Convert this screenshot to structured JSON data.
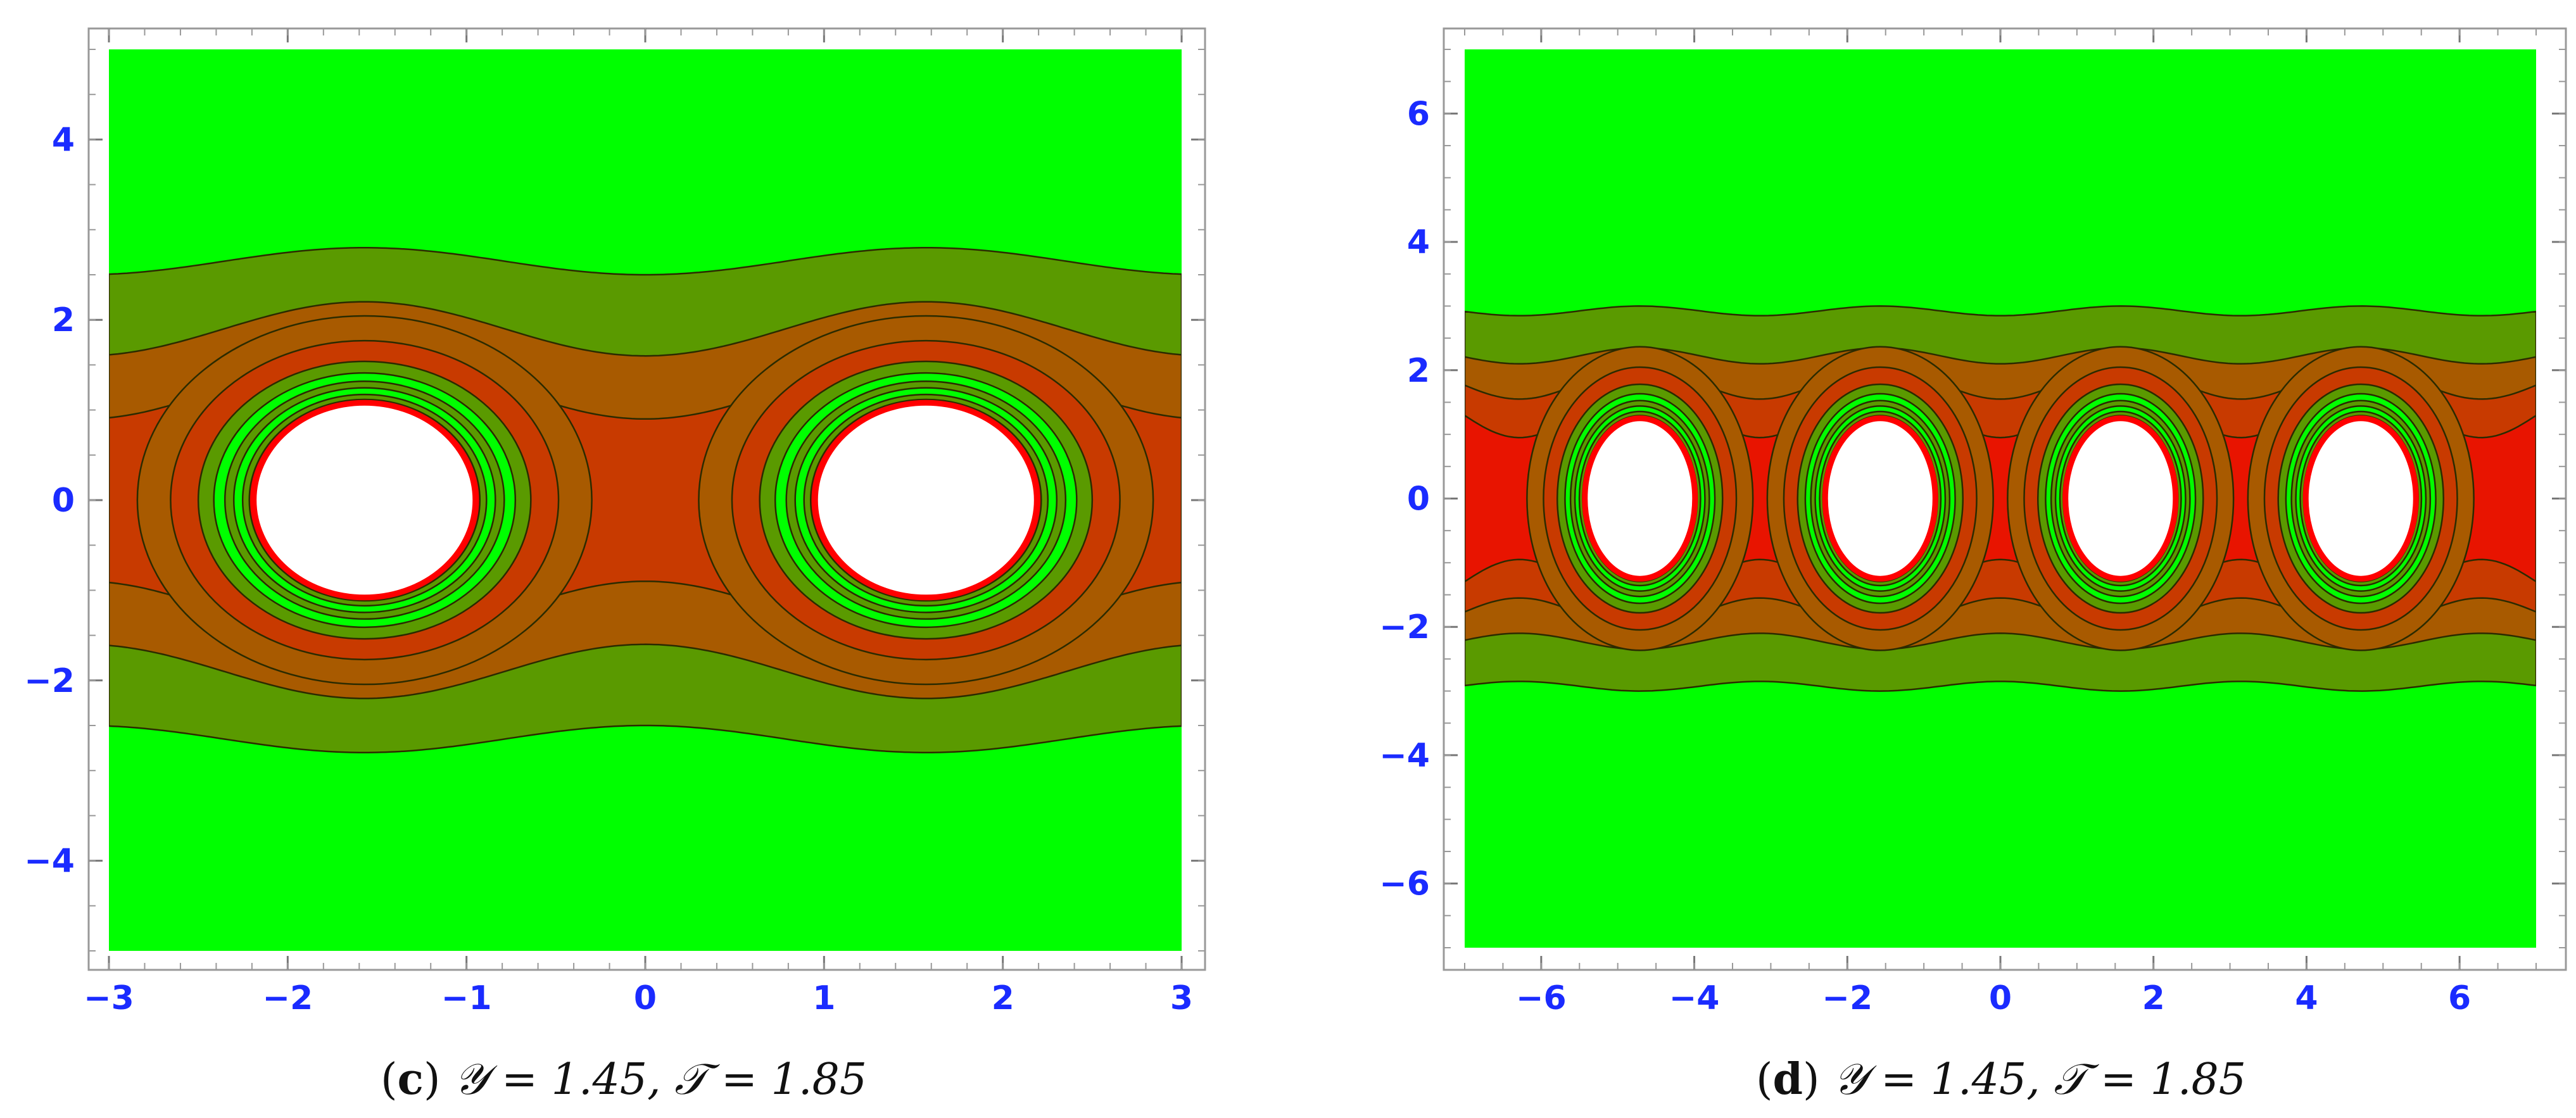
{
  "colors": {
    "outer": "#00ff00",
    "band1": "#5a9a00",
    "band2": "#a85a00",
    "band3": "#c83a00",
    "core": "#e81400",
    "rim": "#ff0000",
    "hole": "#ffffff",
    "contour": "#2b2b00",
    "tick": "#1a2bff"
  },
  "captions": [
    {
      "letter": "c",
      "open": "(",
      "close": ")",
      "text": "𝒴 = 1.45, 𝒯 = 1.85"
    },
    {
      "letter": "d",
      "open": "(",
      "close": ")",
      "text": "𝒴 = 1.45, 𝒯 = 1.85"
    }
  ],
  "chart_data": [
    {
      "type": "heatmap",
      "title": "",
      "xlabel": "",
      "ylabel": "",
      "xlim": [
        -3,
        3
      ],
      "ylim": [
        -5,
        5
      ],
      "x_ticks": [
        "−3",
        "−2",
        "−1",
        "0",
        "1",
        "2",
        "3"
      ],
      "y_ticks": [
        "−4",
        "−2",
        "0",
        "2",
        "4"
      ],
      "x_tick_values": [
        -3,
        -2,
        -1,
        0,
        1,
        2,
        3
      ],
      "y_tick_values": [
        -4,
        -2,
        0,
        2,
        4
      ],
      "holes": [
        {
          "x": -1.57,
          "y": 0,
          "rx": 0.62,
          "ry": 1.08
        },
        {
          "x": 1.57,
          "y": 0,
          "rx": 0.62,
          "ry": 1.08
        }
      ],
      "contour_levels_y_at_x0": [
        2.5,
        1.6,
        0.9
      ],
      "contour_levels_y_at_hole": [
        2.8,
        2.2,
        1.6
      ]
    },
    {
      "type": "heatmap",
      "title": "",
      "xlabel": "",
      "ylabel": "",
      "xlim": [
        -7,
        7
      ],
      "ylim": [
        -7,
        7
      ],
      "x_ticks": [
        "−6",
        "−4",
        "−2",
        "0",
        "2",
        "4",
        "6"
      ],
      "y_ticks": [
        "−6",
        "−4",
        "−2",
        "0",
        "2",
        "4",
        "6"
      ],
      "x_tick_values": [
        -6,
        -4,
        -2,
        0,
        2,
        4,
        6
      ],
      "y_tick_values": [
        -6,
        -4,
        -2,
        0,
        2,
        4,
        6
      ],
      "holes": [
        {
          "x": -4.71,
          "y": 0,
          "rx": 0.72,
          "ry": 1.25
        },
        {
          "x": -1.57,
          "y": 0,
          "rx": 0.72,
          "ry": 1.25
        },
        {
          "x": 1.57,
          "y": 0,
          "rx": 0.72,
          "ry": 1.25
        },
        {
          "x": 4.71,
          "y": 0,
          "rx": 0.72,
          "ry": 1.25
        }
      ],
      "contour_levels_y_at_x0": [
        2.85,
        2.1,
        1.55,
        0.95
      ],
      "contour_levels_y_at_hole": [
        3.0,
        2.35,
        2.05,
        1.75
      ]
    }
  ]
}
